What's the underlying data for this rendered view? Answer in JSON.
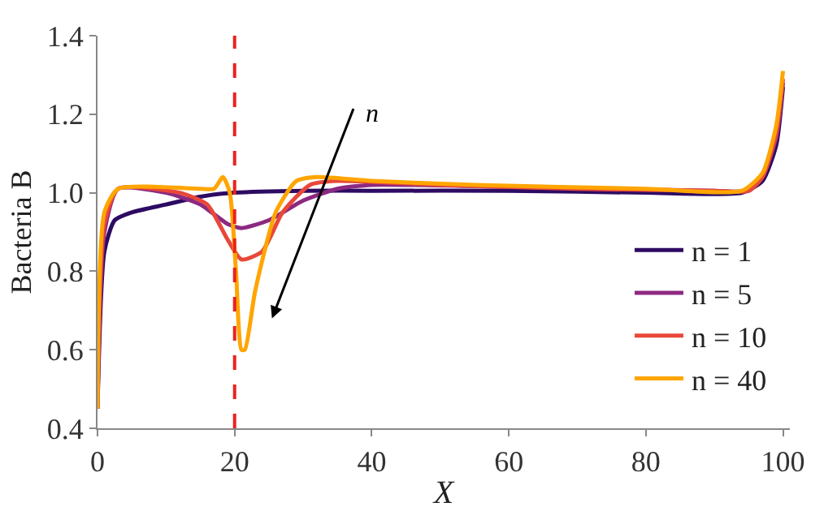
{
  "chart_data": {
    "type": "line",
    "xlabel": "X",
    "ylabel": "Bacteria B",
    "xlim": [
      0,
      101
    ],
    "ylim": [
      0.4,
      1.4
    ],
    "xticks": [
      0,
      20,
      40,
      60,
      80,
      100
    ],
    "yticks": [
      {
        "value": 0.4,
        "label": "0.4"
      },
      {
        "value": 0.6,
        "label": "0.6"
      },
      {
        "value": 0.8,
        "label": "0.8"
      },
      {
        "value": 1.0,
        "label": "1.0"
      },
      {
        "value": 1.2,
        "label": "1.2"
      },
      {
        "value": 1.4,
        "label": "1.4"
      }
    ],
    "legend": "bottom right",
    "marker": "none",
    "line_style": "solid",
    "ref_lines": [
      {
        "axis": "x",
        "value": 20,
        "label": null,
        "color": "#e8231e",
        "line_style": "dashed"
      }
    ],
    "annotations": [
      "n"
    ],
    "series": [
      {
        "name": "n = 1",
        "color": "#2e0b63",
        "x": [
          0,
          1,
          2.5,
          5,
          10,
          15,
          20,
          30,
          40,
          60,
          80,
          94,
          97,
          99,
          100
        ],
        "values": [
          0.45,
          0.85,
          0.93,
          0.95,
          0.97,
          0.99,
          1.0,
          1.005,
          1.005,
          1.005,
          1.0,
          1.0,
          1.03,
          1.12,
          1.27
        ]
      },
      {
        "name": "n = 5",
        "color": "#8c2981",
        "x": [
          0,
          1,
          3,
          10,
          15,
          19,
          21,
          25,
          30,
          35,
          40,
          60,
          90,
          95,
          97,
          99,
          100
        ],
        "values": [
          0.45,
          0.9,
          1.01,
          1.0,
          0.97,
          0.92,
          0.91,
          0.93,
          0.98,
          1.01,
          1.02,
          1.015,
          1.005,
          1.005,
          1.04,
          1.14,
          1.28
        ]
      },
      {
        "name": "n = 10",
        "color": "#e8483a",
        "x": [
          0,
          1,
          3,
          12,
          16,
          19,
          21,
          24,
          27,
          31,
          35,
          50,
          70,
          90,
          95,
          97,
          99,
          100
        ],
        "values": [
          0.45,
          0.92,
          1.01,
          1.0,
          0.97,
          0.88,
          0.83,
          0.85,
          0.95,
          1.02,
          1.03,
          1.02,
          1.01,
          1.005,
          1.005,
          1.04,
          1.15,
          1.29
        ]
      },
      {
        "name": "n = 40",
        "color": "#ffa500",
        "x": [
          0,
          1,
          3,
          15,
          17,
          18.3,
          19.3,
          20.2,
          21,
          21.5,
          23,
          26,
          29,
          32,
          40,
          55,
          80,
          94,
          97,
          99,
          100
        ],
        "values": [
          0.45,
          0.95,
          1.01,
          1.01,
          1.01,
          1.04,
          1.0,
          0.8,
          0.6,
          0.6,
          0.75,
          0.95,
          1.03,
          1.04,
          1.03,
          1.02,
          1.01,
          1.005,
          1.05,
          1.17,
          1.31
        ]
      }
    ]
  }
}
